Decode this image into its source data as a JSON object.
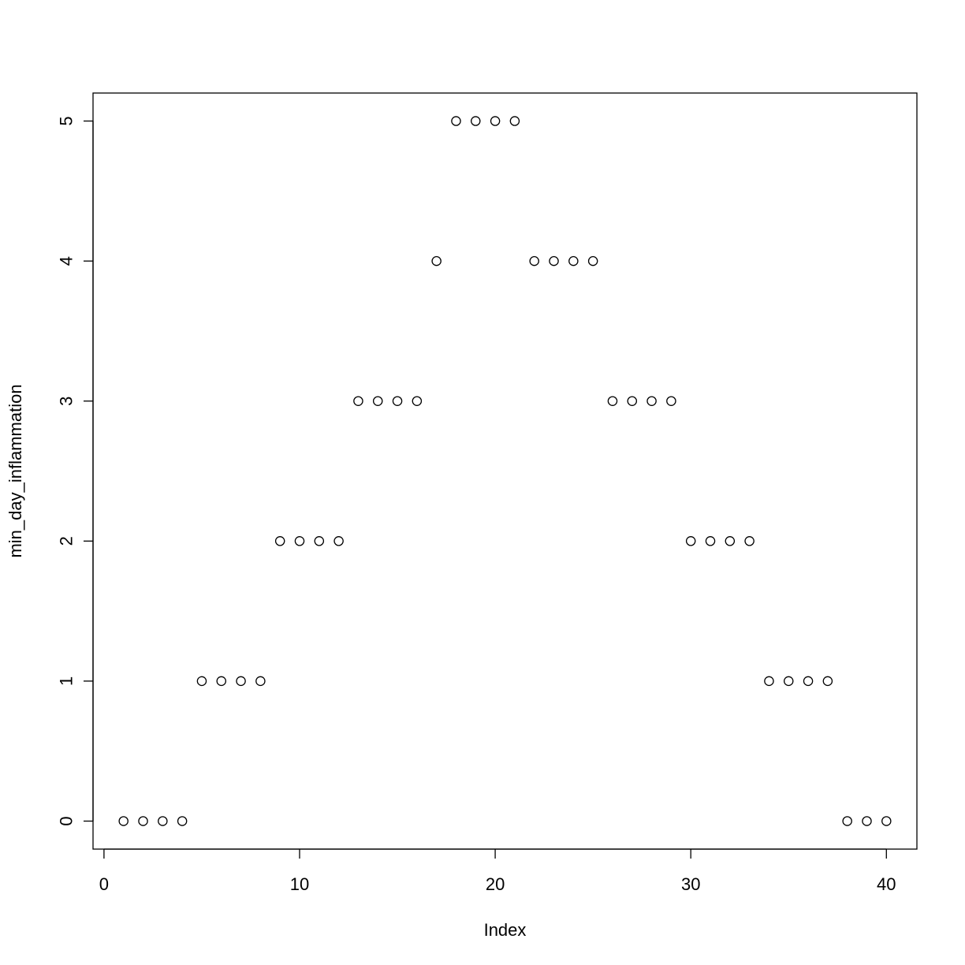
{
  "chart_data": {
    "type": "scatter",
    "xlabel": "Index",
    "ylabel": "min_day_inflammation",
    "xlim": [
      -0.56,
      41.56
    ],
    "ylim": [
      -0.2,
      5.2
    ],
    "x_ticks": [
      0,
      10,
      20,
      30,
      40
    ],
    "y_ticks": [
      0,
      1,
      2,
      3,
      4,
      5
    ],
    "x_tick_labels": [
      "0",
      "10",
      "20",
      "30",
      "40"
    ],
    "y_tick_labels": [
      "0",
      "1",
      "2",
      "3",
      "4",
      "5"
    ],
    "grid": false,
    "marker": "open-circle",
    "series": [
      {
        "x": [
          1,
          2,
          3,
          4,
          5,
          6,
          7,
          8,
          9,
          10,
          11,
          12,
          13,
          14,
          15,
          16,
          17,
          18,
          19,
          20,
          21,
          22,
          23,
          24,
          25,
          26,
          27,
          28,
          29,
          30,
          31,
          32,
          33,
          34,
          35,
          36,
          37,
          38,
          39,
          40
        ],
        "values": [
          0,
          0,
          0,
          0,
          1,
          1,
          1,
          1,
          2,
          2,
          2,
          2,
          3,
          3,
          3,
          3,
          4,
          5,
          5,
          5,
          5,
          4,
          4,
          4,
          4,
          3,
          3,
          3,
          3,
          2,
          2,
          2,
          2,
          1,
          1,
          1,
          1,
          0,
          0,
          0
        ]
      }
    ]
  }
}
